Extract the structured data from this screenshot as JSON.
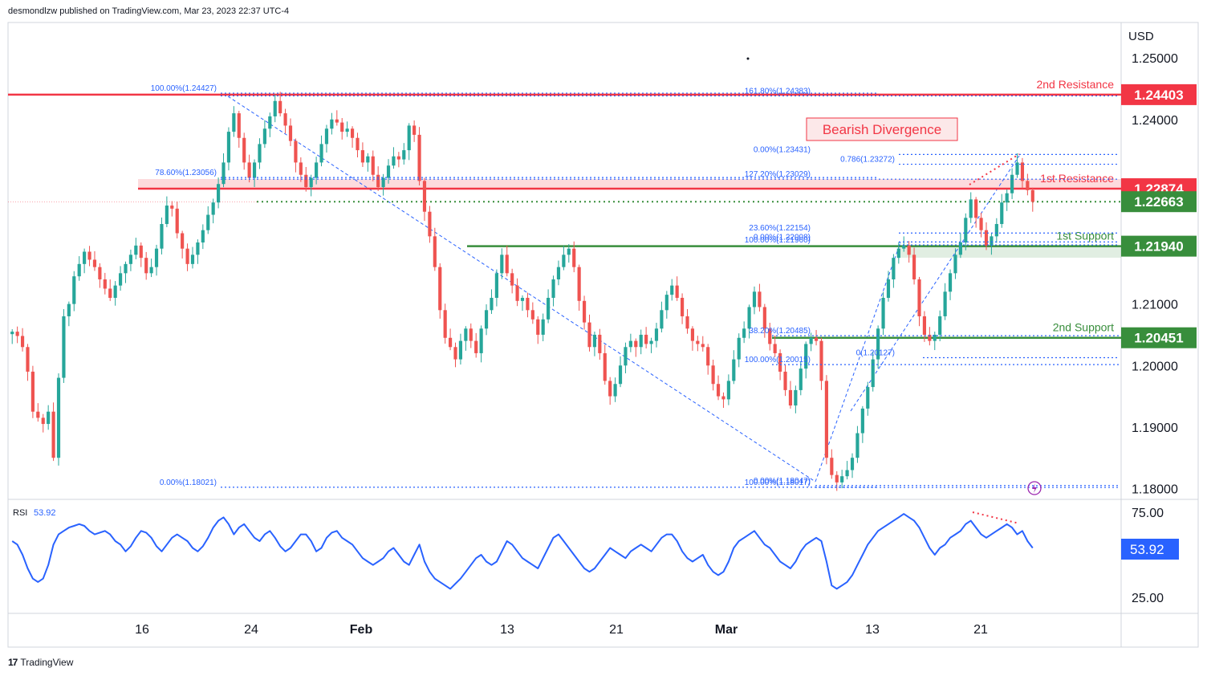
{
  "header": {
    "publisher": "desmondlzw published on TradingView.com, Mar 23, 2023 22:37 UTC-4"
  },
  "footer": {
    "brand": "TradingView",
    "logo": "17"
  },
  "currency": "USD",
  "colors": {
    "up": "#26a69a",
    "down": "#ef5350",
    "resistance": "#f23645",
    "support": "#388e3c",
    "fib": "#2962ff",
    "rsi": "#2962ff"
  },
  "chart_data": {
    "type": "candlestick",
    "price_axis": {
      "ticks": [
        "1.25000",
        "1.24000",
        "1.21000",
        "1.20000",
        "1.19000",
        "1.18000"
      ],
      "ylim": [
        1.1785,
        1.2555
      ]
    },
    "time_axis": {
      "ticks": [
        "16",
        "24",
        "Feb",
        "13",
        "21",
        "Mar",
        "13",
        "21"
      ]
    },
    "levels": [
      {
        "label": "2nd Resistance",
        "value": "1.24403",
        "type": "resistance"
      },
      {
        "label": "1st Resistance",
        "value": "1.22874",
        "type": "resistance"
      },
      {
        "label": "",
        "value": "1.22663",
        "type": "support"
      },
      {
        "label": "1st Support",
        "value": "1.21940",
        "type": "support"
      },
      {
        "label": "2nd Support",
        "value": "1.20451",
        "type": "support"
      }
    ],
    "annotations": {
      "divergence": "Bearish Divergence"
    },
    "fib_labels": [
      "100.00%(1.24427)",
      "78.60%(1.23056)",
      "0.00%(1.18021)",
      "161.80%(1.24383)",
      "0.00%(1.23431)",
      "0.786(1.23272)",
      "127.20%(1.23029)",
      "23.60%(1.22154)",
      "0.00%(1.22008)",
      "100.00%(1.21960)",
      "38.20%(1.20485)",
      "0(1.20127)",
      "100.00%(1.20015)",
      "0.00%(1.18047)",
      "100.00%(1.18017)"
    ],
    "close_series": [
      1.2055,
      1.2048,
      1.203,
      1.199,
      1.1925,
      1.1915,
      1.1905,
      1.1925,
      1.185,
      1.198,
      1.208,
      1.21,
      1.2145,
      1.2165,
      1.2185,
      1.2172,
      1.216,
      1.214,
      1.2125,
      1.211,
      1.213,
      1.215,
      1.2165,
      1.218,
      1.2195,
      1.2175,
      1.215,
      1.216,
      1.219,
      1.223,
      1.226,
      1.2255,
      1.2215,
      1.219,
      1.2165,
      1.218,
      1.22,
      1.222,
      1.2245,
      1.2265,
      1.2295,
      1.233,
      1.238,
      1.241,
      1.237,
      1.233,
      1.2305,
      1.233,
      1.236,
      1.2385,
      1.2405,
      1.243,
      1.241,
      1.239,
      1.2365,
      1.233,
      1.231,
      1.229,
      1.2305,
      1.233,
      1.236,
      1.2385,
      1.24,
      1.2395,
      1.238,
      1.2385,
      1.237,
      1.235,
      1.233,
      1.234,
      1.231,
      1.229,
      1.2305,
      1.2325,
      1.234,
      1.2335,
      1.235,
      1.239,
      1.2375,
      1.23,
      1.225,
      1.221,
      1.216,
      1.209,
      1.2045,
      1.203,
      1.201,
      1.204,
      1.206,
      1.204,
      1.202,
      1.206,
      1.209,
      1.211,
      1.215,
      1.218,
      1.215,
      1.213,
      1.2105,
      1.211,
      1.209,
      1.2075,
      1.205,
      1.2075,
      1.211,
      1.214,
      1.216,
      1.218,
      1.219,
      1.216,
      1.2105,
      1.207,
      1.203,
      1.205,
      1.202,
      1.1975,
      1.195,
      1.197,
      1.2,
      1.203,
      1.204,
      1.203,
      1.205,
      1.2035,
      1.204,
      1.206,
      1.209,
      1.2115,
      1.213,
      1.211,
      1.208,
      1.206,
      1.204,
      1.2035,
      1.203,
      1.2,
      1.197,
      1.195,
      1.1945,
      1.1975,
      1.201,
      1.2045,
      1.206,
      1.2095,
      1.212,
      1.2095,
      1.206,
      1.2035,
      1.202,
      1.199,
      1.196,
      1.1935,
      1.196,
      1.1995,
      1.2035,
      1.2045,
      1.204,
      1.1975,
      1.185,
      1.1822,
      1.181,
      1.182,
      1.183,
      1.185,
      1.189,
      1.193,
      1.1965,
      1.201,
      1.206,
      1.211,
      1.214,
      1.2175,
      1.219,
      1.2195,
      1.218,
      1.214,
      1.208,
      1.205,
      1.204,
      1.205,
      1.208,
      1.212,
      1.215,
      1.218,
      1.22,
      1.224,
      1.227,
      1.224,
      1.222,
      1.2195,
      1.221,
      1.223,
      1.2265,
      1.228,
      1.231,
      1.233,
      1.23,
      1.2285,
      1.2266
    ],
    "rsi": {
      "label": "RSI",
      "value": "53.92",
      "ticks": [
        "75.00",
        "25.00"
      ],
      "ylim": [
        18,
        82
      ],
      "series": [
        58,
        56,
        50,
        42,
        36,
        34,
        36,
        44,
        56,
        62,
        64,
        66,
        67,
        68,
        67,
        64,
        62,
        63,
        64,
        62,
        58,
        56,
        52,
        55,
        60,
        64,
        63,
        60,
        55,
        52,
        56,
        60,
        62,
        60,
        58,
        54,
        52,
        55,
        60,
        66,
        70,
        72,
        68,
        62,
        66,
        68,
        64,
        60,
        58,
        62,
        64,
        60,
        55,
        52,
        54,
        58,
        62,
        62,
        58,
        52,
        54,
        60,
        63,
        64,
        60,
        58,
        56,
        52,
        48,
        46,
        44,
        46,
        48,
        52,
        54,
        50,
        46,
        44,
        50,
        56,
        46,
        40,
        36,
        34,
        32,
        30,
        33,
        36,
        40,
        44,
        48,
        50,
        46,
        44,
        46,
        52,
        58,
        56,
        52,
        48,
        46,
        44,
        42,
        48,
        54,
        60,
        62,
        58,
        54,
        50,
        46,
        42,
        40,
        42,
        46,
        50,
        54,
        52,
        50,
        48,
        52,
        54,
        56,
        54,
        52,
        56,
        60,
        62,
        62,
        58,
        52,
        48,
        46,
        48,
        50,
        44,
        40,
        38,
        40,
        46,
        54,
        58,
        60,
        62,
        64,
        60,
        56,
        54,
        50,
        46,
        44,
        42,
        46,
        52,
        56,
        58,
        60,
        58,
        46,
        32,
        30,
        32,
        34,
        38,
        44,
        50,
        56,
        60,
        64,
        66,
        68,
        70,
        72,
        74,
        72,
        70,
        66,
        60,
        54,
        50,
        54,
        56,
        60,
        62,
        64,
        68,
        70,
        66,
        62,
        60,
        62,
        64,
        66,
        68,
        66,
        62,
        64,
        58,
        54
      ]
    }
  }
}
